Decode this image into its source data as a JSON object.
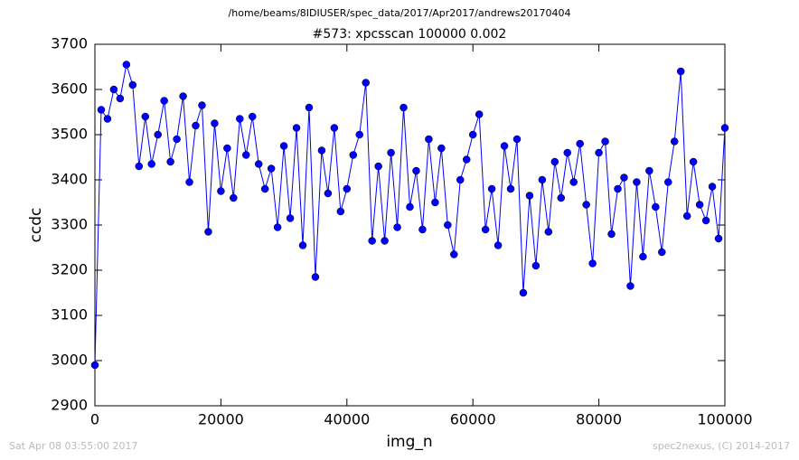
{
  "chart_data": {
    "type": "line",
    "suptitle": "/home/beams/8IDIUSER/spec_data/2017/Apr2017/andrews20170404",
    "title": "#573: xpcsscan 100000 0.002",
    "xlabel": "img_n",
    "ylabel": "ccdc",
    "footer_left": "Sat Apr 08 03:55:00 2017",
    "footer_right": "spec2nexus, (C) 2014-2017",
    "x": [
      0,
      1000,
      2000,
      3000,
      4000,
      5000,
      6000,
      7000,
      8000,
      9000,
      10000,
      11000,
      12000,
      13000,
      14000,
      15000,
      16000,
      17000,
      18000,
      19000,
      20000,
      21000,
      22000,
      23000,
      24000,
      25000,
      26000,
      27000,
      28000,
      29000,
      30000,
      31000,
      32000,
      33000,
      34000,
      35000,
      36000,
      37000,
      38000,
      39000,
      40000,
      41000,
      42000,
      43000,
      44000,
      45000,
      46000,
      47000,
      48000,
      49000,
      50000,
      51000,
      52000,
      53000,
      54000,
      55000,
      56000,
      57000,
      58000,
      59000,
      60000,
      61000,
      62000,
      63000,
      64000,
      65000,
      66000,
      67000,
      68000,
      69000,
      70000,
      71000,
      72000,
      73000,
      74000,
      75000,
      76000,
      77000,
      78000,
      79000,
      80000,
      81000,
      82000,
      83000,
      84000,
      85000,
      86000,
      87000,
      88000,
      89000,
      90000,
      91000,
      92000,
      93000,
      94000,
      95000,
      96000,
      97000,
      98000,
      99000,
      100000
    ],
    "series": [
      {
        "color": "#0000ff",
        "values": [
          2990,
          3555,
          3535,
          3600,
          3580,
          3655,
          3610,
          3430,
          3540,
          3435,
          3500,
          3575,
          3440,
          3490,
          3585,
          3395,
          3520,
          3565,
          3285,
          3525,
          3375,
          3470,
          3360,
          3535,
          3455,
          3540,
          3435,
          3380,
          3425,
          3295,
          3475,
          3315,
          3515,
          3255,
          3560,
          3185,
          3465,
          3370,
          3515,
          3330,
          3380,
          3455,
          3500,
          3615,
          3265,
          3430,
          3265,
          3460,
          3295,
          3560,
          3340,
          3420,
          3290,
          3490,
          3350,
          3470,
          3300,
          3235,
          3400,
          3445,
          3500,
          3545,
          3290,
          3380,
          3255,
          3475,
          3380,
          3490,
          3150,
          3365,
          3210,
          3400,
          3285,
          3440,
          3360,
          3460,
          3395,
          3480,
          3345,
          3215,
          3460,
          3485,
          3280,
          3380,
          3405,
          3165,
          3395,
          3230,
          3420,
          3340,
          3240,
          3395,
          3485,
          3640,
          3320,
          3440,
          3345,
          3310,
          3385,
          3270,
          3515
        ]
      }
    ],
    "xlim": [
      0,
      100000
    ],
    "xticks": [
      0,
      20000,
      40000,
      60000,
      80000,
      100000
    ],
    "ylim": [
      2900,
      3700
    ],
    "yticks": [
      2900,
      3000,
      3100,
      3200,
      3300,
      3400,
      3500,
      3600,
      3700
    ]
  }
}
